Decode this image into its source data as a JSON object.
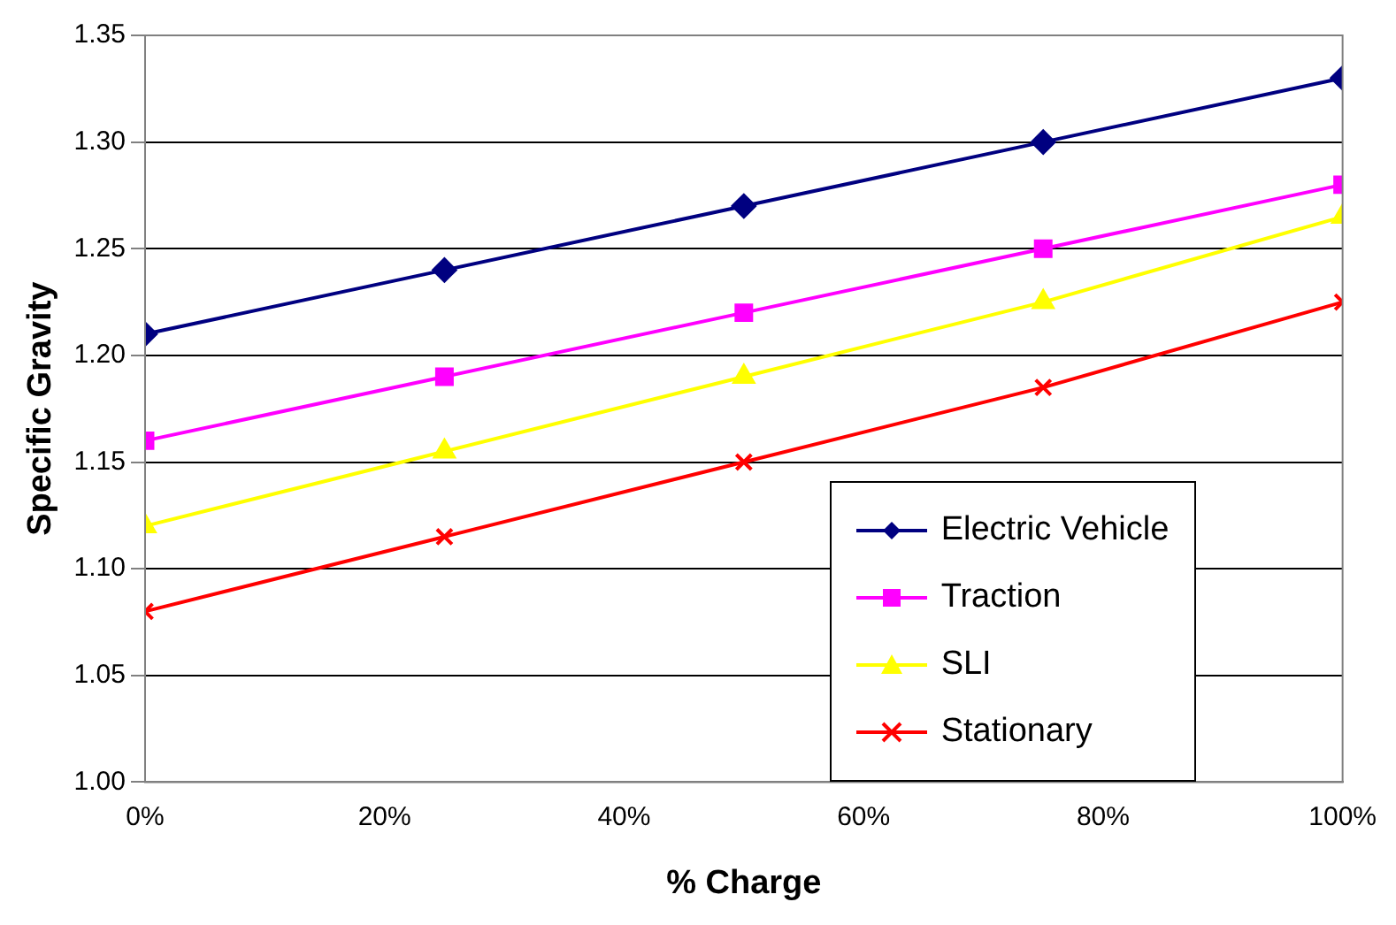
{
  "chart_data": {
    "type": "line",
    "xlabel": "% Charge",
    "ylabel": "Specific Gravity",
    "x": [
      0,
      25,
      50,
      75,
      100
    ],
    "xlim": [
      0,
      100
    ],
    "xticks": [
      {
        "value": 0,
        "label": "0%"
      },
      {
        "value": 20,
        "label": "20%"
      },
      {
        "value": 40,
        "label": "40%"
      },
      {
        "value": 60,
        "label": "60%"
      },
      {
        "value": 80,
        "label": "80%"
      },
      {
        "value": 100,
        "label": "100%"
      }
    ],
    "ylim": [
      1.0,
      1.35
    ],
    "yticks": [
      {
        "value": 1.0,
        "label": "1.00"
      },
      {
        "value": 1.05,
        "label": "1.05"
      },
      {
        "value": 1.1,
        "label": "1.10"
      },
      {
        "value": 1.15,
        "label": "1.15"
      },
      {
        "value": 1.2,
        "label": "1.20"
      },
      {
        "value": 1.25,
        "label": "1.25"
      },
      {
        "value": 1.3,
        "label": "1.30"
      },
      {
        "value": 1.35,
        "label": "1.35"
      }
    ],
    "grid": "y",
    "legend": "bottom right",
    "line_style": "solid",
    "series": [
      {
        "name": "Electric Vehicle",
        "color": "#000080",
        "marker": "diamond",
        "values": [
          1.21,
          1.24,
          1.27,
          1.3,
          1.33
        ]
      },
      {
        "name": "Traction",
        "color": "#ff00ff",
        "marker": "square",
        "values": [
          1.16,
          1.19,
          1.22,
          1.25,
          1.28
        ]
      },
      {
        "name": "SLI",
        "color": "#ffff00",
        "marker": "triangle",
        "values": [
          1.12,
          1.155,
          1.19,
          1.225,
          1.265
        ]
      },
      {
        "name": "Stationary",
        "color": "#ff0000",
        "marker": "cross",
        "values": [
          1.08,
          1.115,
          1.15,
          1.185,
          1.225
        ]
      }
    ]
  }
}
